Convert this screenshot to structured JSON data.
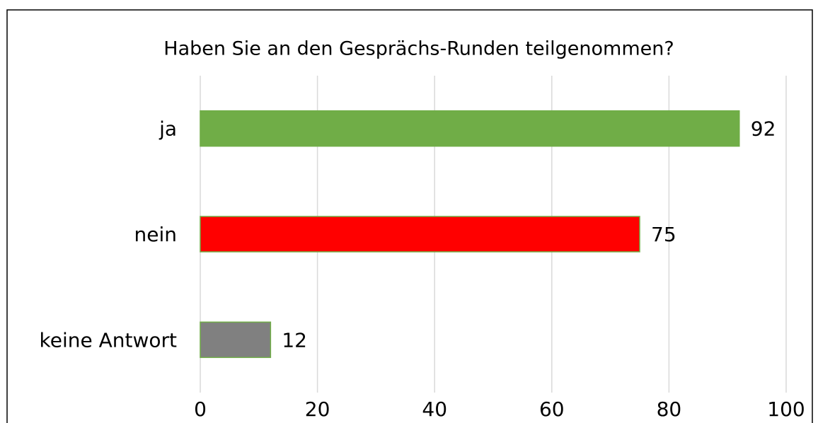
{
  "chart_data": {
    "type": "barh",
    "title": "Haben Sie an den Gesprächs-Runden teilgenommen?",
    "categories": [
      "ja",
      "nein",
      "keine Antwort"
    ],
    "values": [
      92,
      75,
      12
    ],
    "colors": [
      "#70ad47",
      "#ff0000",
      "#808080"
    ],
    "edgecolor": "#70ad47",
    "xlim": [
      0,
      100
    ],
    "xticks": [
      0,
      20,
      40,
      60,
      80,
      100
    ],
    "grid": true
  }
}
